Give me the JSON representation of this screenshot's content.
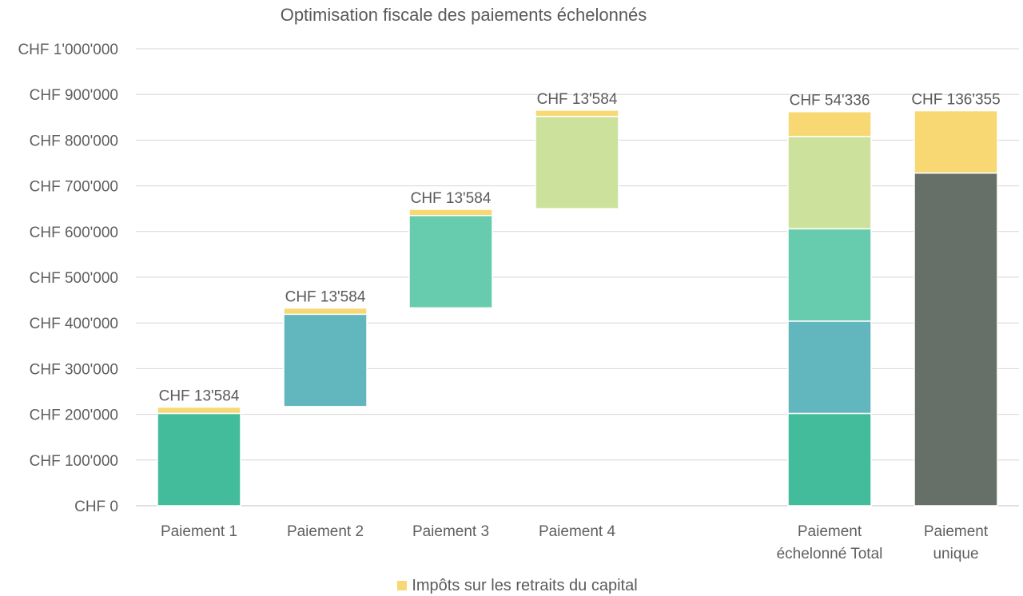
{
  "chart_data": {
    "type": "bar",
    "title": "Optimisation fiscale des paiements échelonnés",
    "ylim": [
      0,
      1000000
    ],
    "yticks": [
      0,
      100000,
      200000,
      300000,
      400000,
      500000,
      600000,
      700000,
      800000,
      900000,
      1000000
    ],
    "ytick_labels": [
      "CHF 0",
      "CHF 100'000",
      "CHF 200'000",
      "CHF 300'000",
      "CHF 400'000",
      "CHF 500'000",
      "CHF 600'000",
      "CHF 700'000",
      "CHF 800'000",
      "CHF 900'000",
      "CHF 1'000'000"
    ],
    "grid": true,
    "legend_position": "bottom-center",
    "legend": [
      {
        "name": "Impôts sur les retraits du capital",
        "color": "#f7d873"
      }
    ],
    "categories": [
      {
        "label": [
          "Paiement 1"
        ],
        "segments": [
          {
            "base": 0,
            "value": 202000,
            "color": "#43bc9b"
          },
          {
            "base": 202000,
            "value": 13584,
            "color": "#f7d873"
          }
        ],
        "annotation": "CHF 13'584"
      },
      {
        "label": [
          "Paiement 2"
        ],
        "segments": [
          {
            "base": 217000,
            "value": 202000,
            "color": "#62b6bd"
          },
          {
            "base": 419000,
            "value": 13584,
            "color": "#f7d873"
          }
        ],
        "annotation": "CHF 13'584"
      },
      {
        "label": [
          "Paiement 3"
        ],
        "segments": [
          {
            "base": 433000,
            "value": 202000,
            "color": "#67cbad"
          },
          {
            "base": 635000,
            "value": 13584,
            "color": "#f7d873"
          }
        ],
        "annotation": "CHF 13'584"
      },
      {
        "label": [
          "Paiement 4"
        ],
        "segments": [
          {
            "base": 650000,
            "value": 202000,
            "color": "#cce29c"
          },
          {
            "base": 852000,
            "value": 13584,
            "color": "#f7d873"
          }
        ],
        "annotation": "CHF 13'584"
      },
      {
        "label": [
          "Paiement",
          "échelonné Total"
        ],
        "segments": [
          {
            "base": 0,
            "value": 202000,
            "color": "#43bc9b"
          },
          {
            "base": 202000,
            "value": 202000,
            "color": "#62b6bd"
          },
          {
            "base": 404000,
            "value": 202000,
            "color": "#67cbad"
          },
          {
            "base": 606000,
            "value": 202000,
            "color": "#cce29c"
          },
          {
            "base": 808000,
            "value": 54336,
            "color": "#f7d873"
          }
        ],
        "annotation": "CHF 54'336"
      },
      {
        "label": [
          "Paiement",
          "unique"
        ],
        "segments": [
          {
            "base": 0,
            "value": 728000,
            "color": "#677068"
          },
          {
            "base": 728000,
            "value": 136355,
            "color": "#f7d873"
          }
        ],
        "annotation": "CHF 136'355"
      }
    ]
  }
}
